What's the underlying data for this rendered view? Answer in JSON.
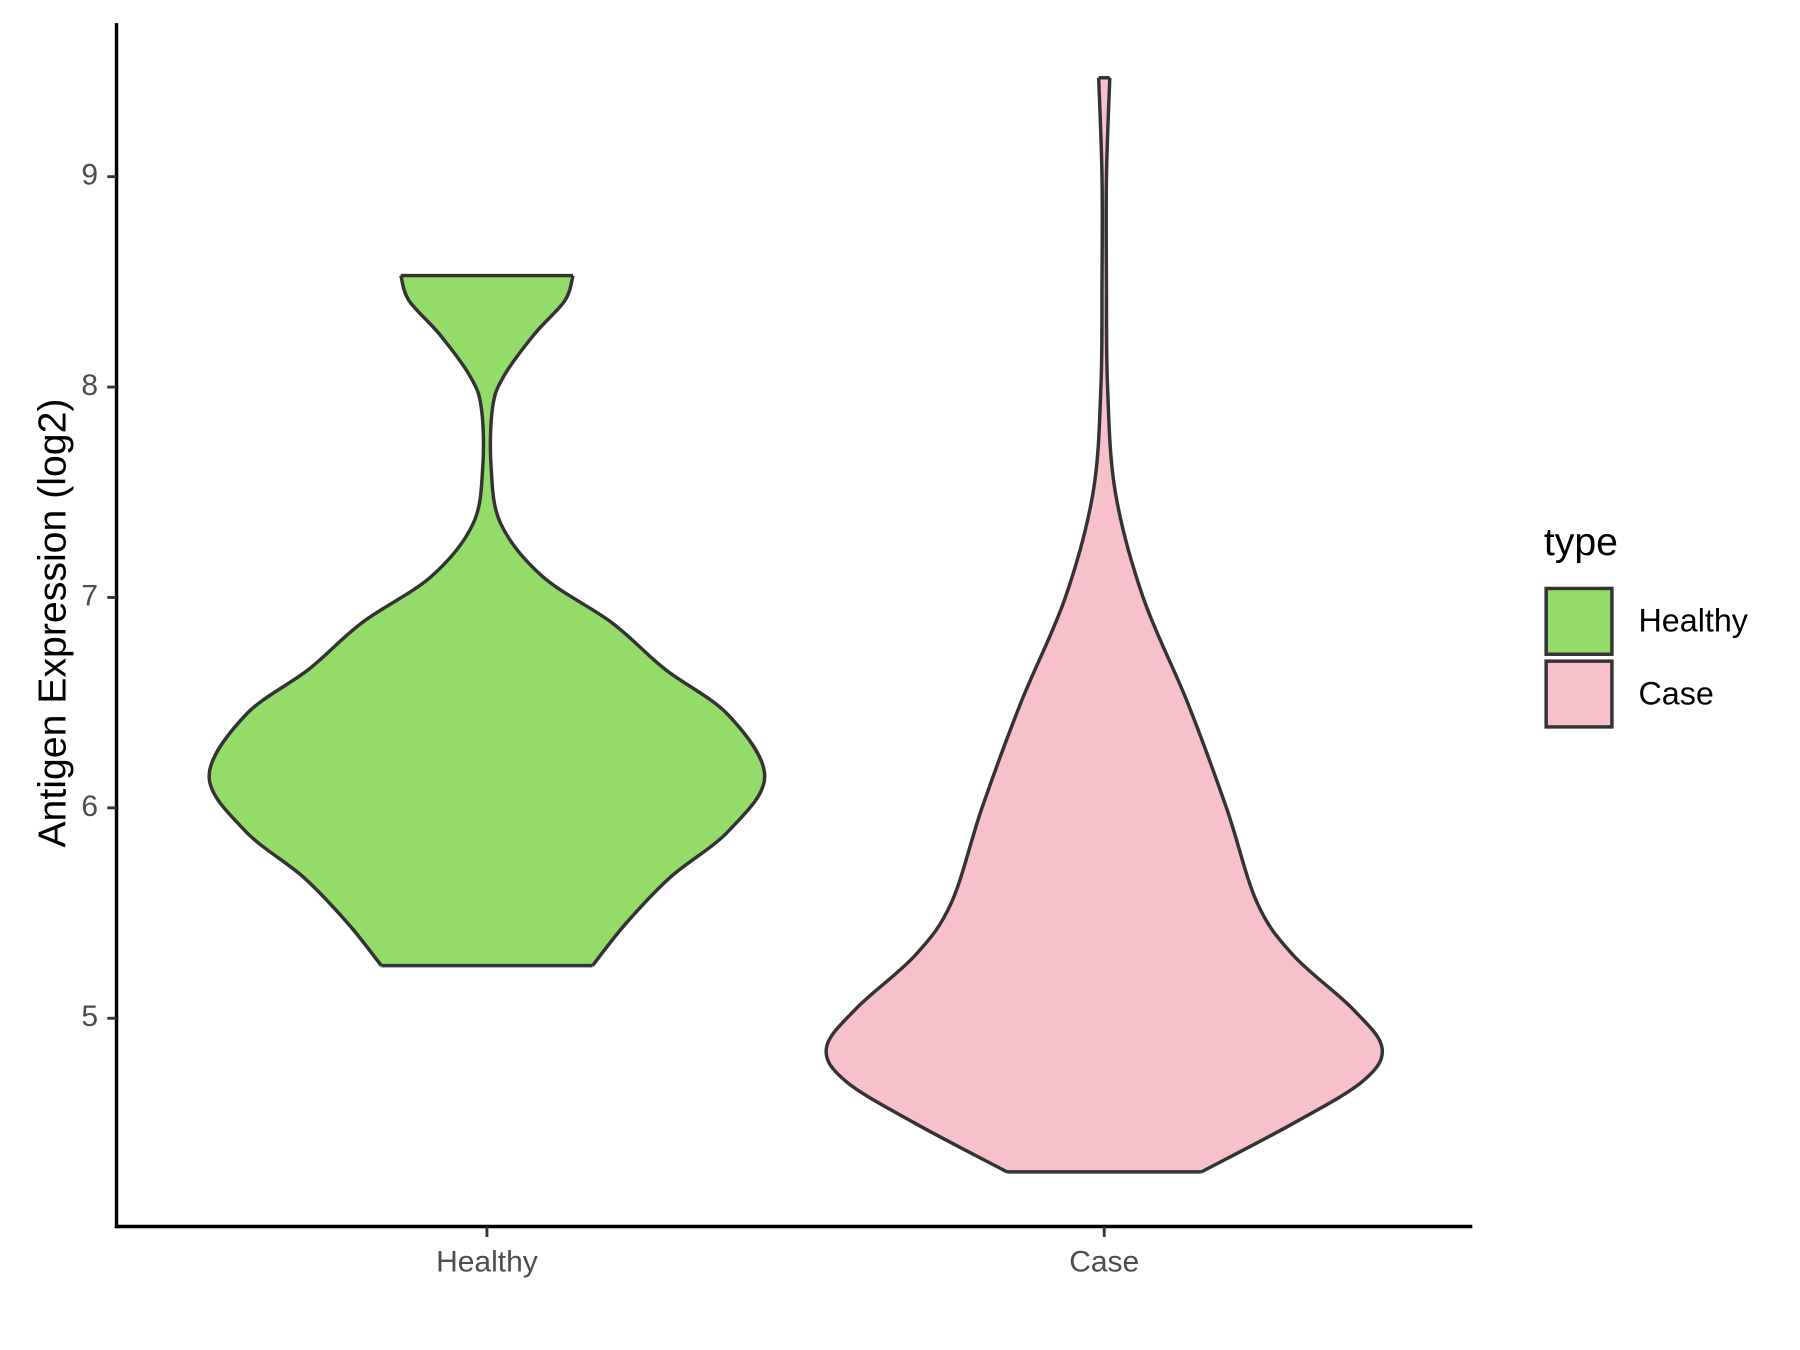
{
  "chart_data": {
    "type": "violin",
    "ylabel": "Antigen Expression (log2)",
    "legend_title": "type",
    "categories": [
      "Healthy",
      "Case"
    ],
    "ylim": [
      4.01,
      9.73
    ],
    "yticks": [
      5,
      6,
      7,
      8,
      9
    ],
    "series": [
      {
        "name": "Healthy",
        "color": "#93dc6a",
        "y": [
          5.25,
          5.45,
          5.67,
          5.89,
          6.15,
          6.44,
          6.66,
          6.88,
          7.1,
          7.35,
          7.62,
          7.9,
          8.05,
          8.25,
          8.41,
          8.53
        ],
        "density": [
          0.38,
          0.5,
          0.66,
          0.87,
          1.0,
          0.87,
          0.64,
          0.45,
          0.2,
          0.05,
          0.015,
          0.02,
          0.06,
          0.17,
          0.28,
          0.31
        ]
      },
      {
        "name": "Case",
        "color": "#f7c0cb",
        "y": [
          4.27,
          4.5,
          4.7,
          4.86,
          5.05,
          5.3,
          5.55,
          6.0,
          6.5,
          7.0,
          7.5,
          8.0,
          8.5,
          9.0,
          9.47
        ],
        "density": [
          0.35,
          0.68,
          0.93,
          1.0,
          0.89,
          0.68,
          0.55,
          0.44,
          0.3,
          0.14,
          0.04,
          0.012,
          0.008,
          0.008,
          0.02
        ]
      }
    ]
  }
}
